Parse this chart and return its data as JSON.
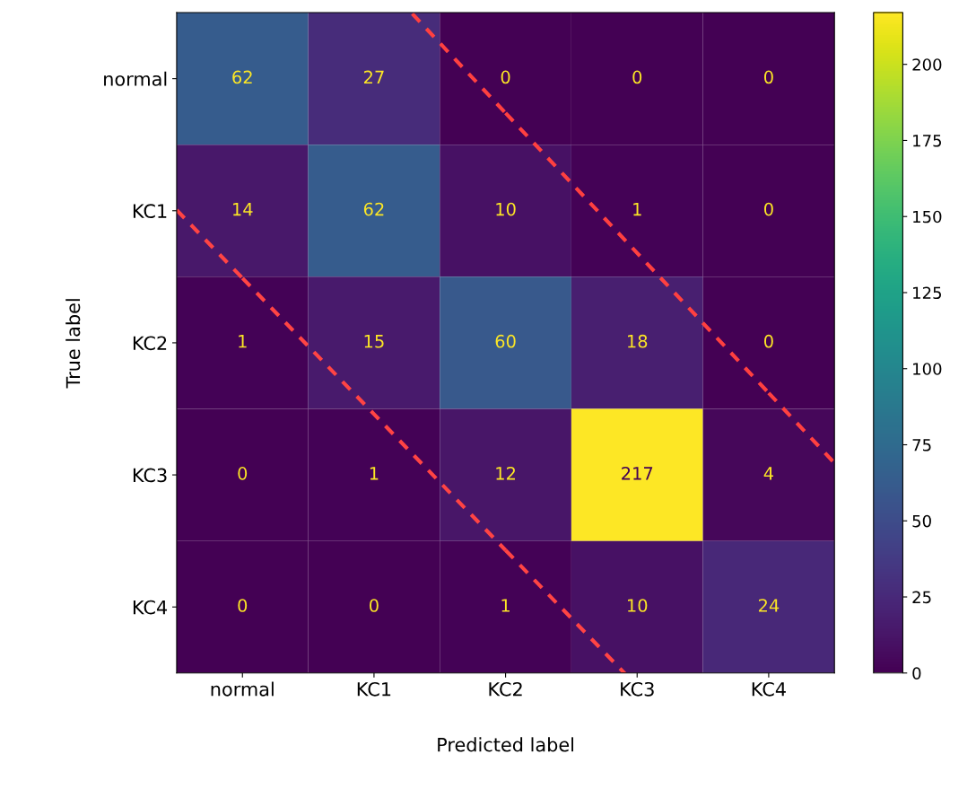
{
  "chart_data": {
    "type": "heatmap",
    "xlabel": "Predicted label",
    "ylabel": "True label",
    "categories": [
      "normal",
      "KC1",
      "KC2",
      "KC3",
      "KC4"
    ],
    "y_categories": [
      "normal",
      "KC1",
      "KC2",
      "KC3",
      "KC4"
    ],
    "cells": [
      [
        62,
        27,
        0,
        0,
        0
      ],
      [
        14,
        62,
        10,
        1,
        0
      ],
      [
        1,
        15,
        60,
        18,
        0
      ],
      [
        0,
        1,
        12,
        217,
        4
      ],
      [
        0,
        0,
        1,
        10,
        24
      ]
    ],
    "data_labels": true,
    "clim": [
      0,
      217
    ],
    "cticks": [
      0,
      25,
      50,
      75,
      100,
      125,
      150,
      175,
      200
    ],
    "series": [
      {
        "type": "line",
        "color": "#ff4040",
        "line_style": "dashed",
        "values": [
          null,
          null,
          0.26,
          1.32,
          2.38
        ],
        "value_labels": [
          null,
          null,
          null,
          null,
          null
        ]
      },
      {
        "type": "line",
        "color": "#ff4444",
        "line_style": "dashed",
        "values": [
          1.51,
          2.54,
          3.57,
          null,
          null
        ],
        "value_labels": [
          null,
          null,
          null,
          null,
          null
        ]
      }
    ]
  }
}
